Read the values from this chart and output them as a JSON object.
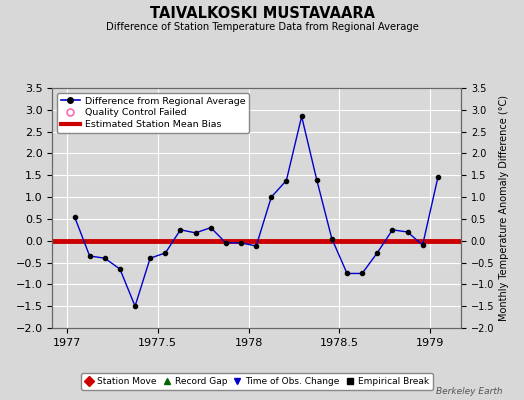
{
  "title": "TAIVALKOSKI MUSTAVAARA",
  "subtitle": "Difference of Station Temperature Data from Regional Average",
  "ylabel_right": "Monthly Temperature Anomaly Difference (°C)",
  "background_color": "#d8d8d8",
  "plot_bg_color": "#d8d8d8",
  "grid_color": "#ffffff",
  "xlim": [
    1976.92,
    1979.17
  ],
  "ylim": [
    -2.0,
    3.5
  ],
  "yticks": [
    -2.0,
    -1.5,
    -1.0,
    -0.5,
    0.0,
    0.5,
    1.0,
    1.5,
    2.0,
    2.5,
    3.0,
    3.5
  ],
  "xticks": [
    1977,
    1977.5,
    1978,
    1978.5,
    1979
  ],
  "xtick_labels": [
    "1977",
    "1977.5",
    "1978",
    "1978.5",
    "1979"
  ],
  "bias_value": 0.0,
  "bias_color": "#cc0000",
  "line_color": "#0000cc",
  "marker_color": "#000000",
  "watermark": "Berkeley Earth",
  "months": [
    1977.042,
    1977.125,
    1977.208,
    1977.292,
    1977.375,
    1977.458,
    1977.542,
    1977.625,
    1977.708,
    1977.792,
    1977.875,
    1977.958,
    1978.042,
    1978.125,
    1978.208,
    1978.292,
    1978.375,
    1978.458,
    1978.542,
    1978.625,
    1978.708,
    1978.792,
    1978.875,
    1978.958,
    1979.042
  ],
  "y_vals": [
    0.55,
    -0.35,
    -0.4,
    -0.65,
    -1.5,
    -0.4,
    -0.28,
    0.25,
    0.18,
    0.3,
    -0.05,
    -0.05,
    -0.12,
    1.0,
    1.38,
    2.85,
    1.4,
    0.05,
    -0.75,
    -0.75,
    -0.28,
    0.25,
    0.2,
    -0.1,
    1.45
  ],
  "legend_top": [
    {
      "label": "Difference from Regional Average",
      "color": "#0000cc",
      "type": "line_dot"
    },
    {
      "label": "Quality Control Failed",
      "color": "#ff69b4",
      "type": "circle_open"
    },
    {
      "label": "Estimated Station Mean Bias",
      "color": "#cc0000",
      "type": "line"
    }
  ],
  "legend_bot": [
    {
      "label": "Station Move",
      "color": "#cc0000",
      "marker": "D"
    },
    {
      "label": "Record Gap",
      "color": "#006600",
      "marker": "^"
    },
    {
      "label": "Time of Obs. Change",
      "color": "#0000cc",
      "marker": "v"
    },
    {
      "label": "Empirical Break",
      "color": "#000000",
      "marker": "s"
    }
  ]
}
